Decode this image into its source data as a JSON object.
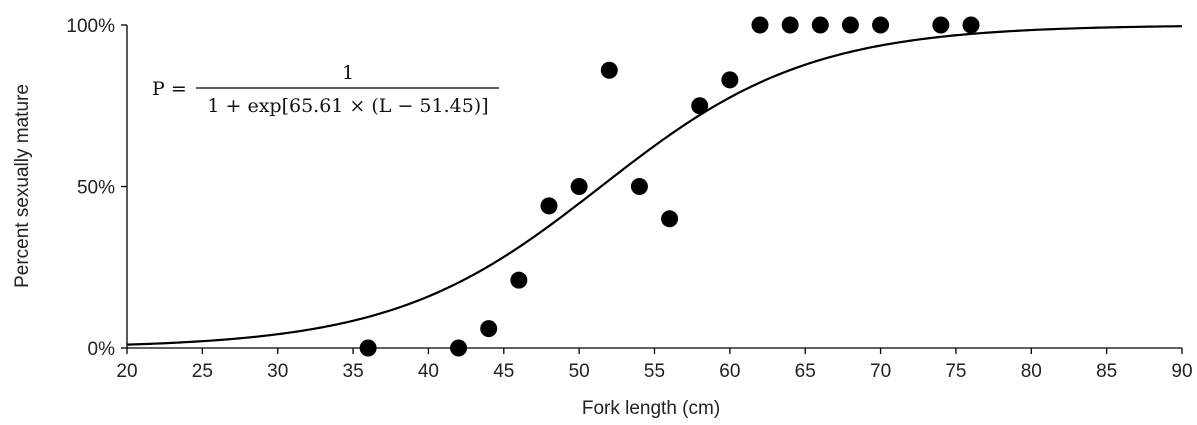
{
  "chart_data": {
    "type": "scatter",
    "xlabel": "Fork length (cm)",
    "ylabel": "Percent sexually mature",
    "xlim": [
      20,
      90
    ],
    "ylim": [
      0,
      100
    ],
    "x_ticks": [
      "20",
      "25",
      "30",
      "35",
      "40",
      "45",
      "50",
      "55",
      "60",
      "65",
      "70",
      "75",
      "80",
      "85",
      "90"
    ],
    "y_ticks": [
      "0%",
      "50%",
      "100%"
    ],
    "grid": false,
    "series": [
      {
        "type": "scatter",
        "marker": "circle",
        "color": "#000000",
        "points": [
          {
            "x": 36,
            "y": 0
          },
          {
            "x": 42,
            "y": 0
          },
          {
            "x": 44,
            "y": 6
          },
          {
            "x": 46,
            "y": 21
          },
          {
            "x": 48,
            "y": 44
          },
          {
            "x": 50,
            "y": 50
          },
          {
            "x": 52,
            "y": 86
          },
          {
            "x": 54,
            "y": 50
          },
          {
            "x": 56,
            "y": 40
          },
          {
            "x": 58,
            "y": 75
          },
          {
            "x": 60,
            "y": 83
          },
          {
            "x": 62,
            "y": 100
          },
          {
            "x": 64,
            "y": 100
          },
          {
            "x": 66,
            "y": 100
          },
          {
            "x": 68,
            "y": 100
          },
          {
            "x": 70,
            "y": 100
          },
          {
            "x": 74,
            "y": 100
          },
          {
            "x": 76,
            "y": 100
          }
        ]
      },
      {
        "type": "line",
        "color": "#000000",
        "model": "logistic",
        "midpoint": 51.45
      }
    ],
    "annotation": {
      "lhs": "P =",
      "numerator": "1",
      "denominator": "1 + exp[65.61 × (L − 51.45)]"
    }
  }
}
